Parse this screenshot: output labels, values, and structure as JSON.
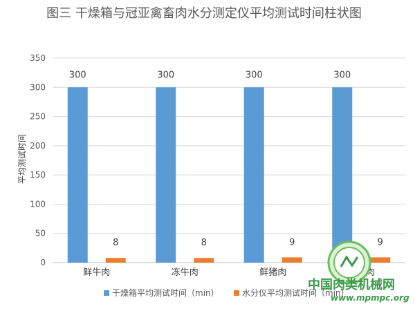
{
  "chart_data": {
    "type": "bar",
    "title": "图三 干燥箱与冠亚禽畜肉水分测定仪平均测试时间柱状图",
    "ylabel": "平均测试时间",
    "xlabel": "",
    "categories": [
      "鲜牛肉",
      "冻牛肉",
      "鲜猪肉",
      "冻猪肉"
    ],
    "series": [
      {
        "name": "干燥箱平均测试时间（min）",
        "values": [
          300,
          300,
          300,
          300
        ],
        "color": "#5b9bd5"
      },
      {
        "name": "水分仪平均测试时间（min）",
        "values": [
          8,
          8,
          9,
          9
        ],
        "color": "#ed7d31"
      }
    ],
    "ylim": [
      0,
      350
    ],
    "yticks": [
      0,
      50,
      100,
      150,
      200,
      250,
      300,
      350
    ],
    "grid": true,
    "legend": "bottom"
  },
  "watermark": {
    "site_name": "中国肉类机械网",
    "url": "www.mpmpc.org"
  }
}
